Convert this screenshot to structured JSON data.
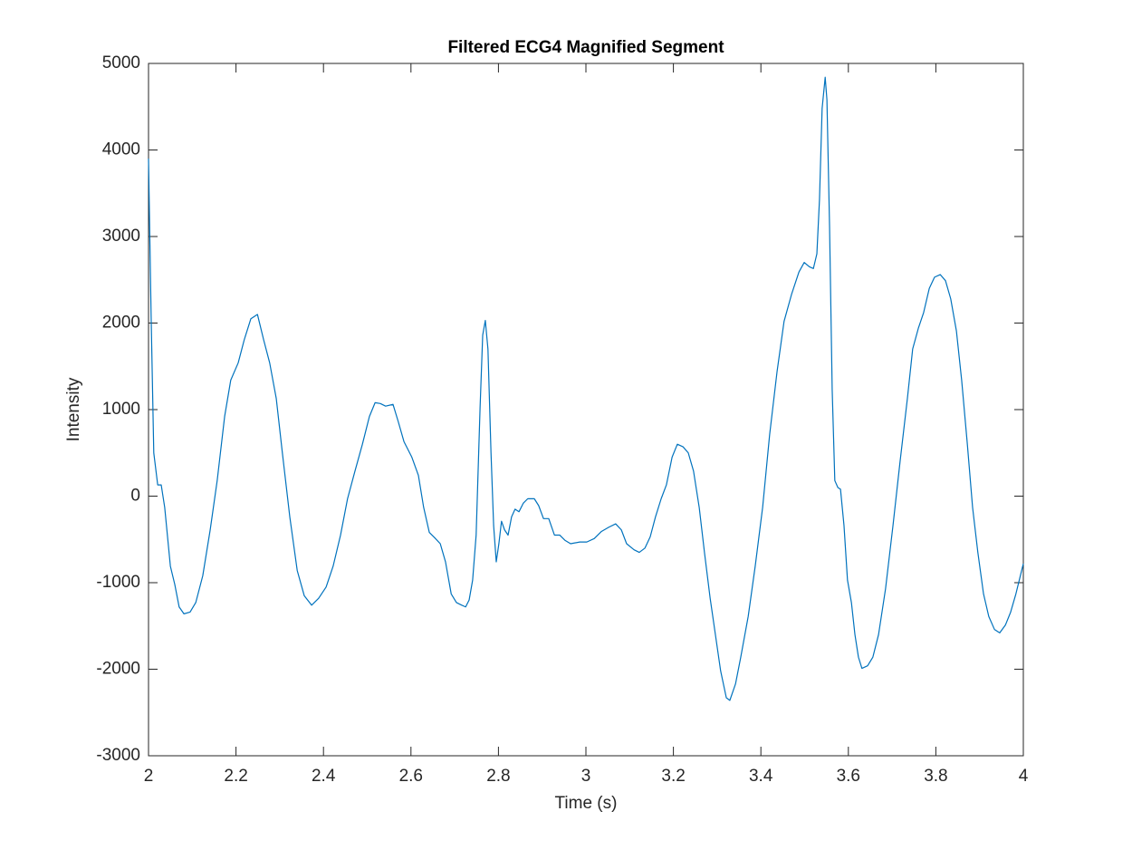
{
  "chart_data": {
    "type": "line",
    "title": "Filtered ECG4 Magnified Segment",
    "xlabel": "Time (s)",
    "ylabel": "Intensity",
    "color": "#0072bd",
    "xlim": [
      2,
      4
    ],
    "xticks": [
      2,
      2.2,
      2.4,
      2.6,
      2.8,
      3,
      3.2,
      3.4,
      3.6,
      3.8,
      4
    ],
    "ylim": [
      -3000,
      5000
    ],
    "yticks": [
      -3000,
      -2000,
      -1000,
      0,
      1000,
      2000,
      3000,
      4000,
      5000
    ],
    "grid": false,
    "x": [
      2.0,
      2.006,
      2.012,
      2.021,
      2.029,
      2.037,
      2.05,
      2.06,
      2.07,
      2.081,
      2.095,
      2.108,
      2.124,
      2.141,
      2.157,
      2.174,
      2.188,
      2.205,
      2.219,
      2.234,
      2.249,
      2.263,
      2.277,
      2.292,
      2.306,
      2.323,
      2.34,
      2.356,
      2.373,
      2.389,
      2.406,
      2.422,
      2.439,
      2.455,
      2.472,
      2.489,
      2.505,
      2.518,
      2.53,
      2.542,
      2.559,
      2.571,
      2.584,
      2.602,
      2.617,
      2.629,
      2.642,
      2.654,
      2.667,
      2.679,
      2.692,
      2.704,
      2.716,
      2.725,
      2.733,
      2.741,
      2.749,
      2.758,
      2.764,
      2.77,
      2.776,
      2.783,
      2.789,
      2.795,
      2.801,
      2.807,
      2.814,
      2.822,
      2.83,
      2.838,
      2.847,
      2.857,
      2.867,
      2.882,
      2.892,
      2.903,
      2.915,
      2.928,
      2.94,
      2.952,
      2.965,
      2.986,
      3.002,
      3.019,
      3.035,
      3.052,
      3.068,
      3.081,
      3.093,
      3.11,
      3.122,
      3.135,
      3.147,
      3.159,
      3.172,
      3.184,
      3.197,
      3.209,
      3.222,
      3.234,
      3.246,
      3.259,
      3.271,
      3.284,
      3.296,
      3.308,
      3.321,
      3.329,
      3.342,
      3.354,
      3.371,
      3.387,
      3.404,
      3.42,
      3.437,
      3.453,
      3.47,
      3.487,
      3.499,
      3.511,
      3.52,
      3.528,
      3.534,
      3.54,
      3.547,
      3.551,
      3.557,
      3.563,
      3.569,
      3.576,
      3.582,
      3.59,
      3.598,
      3.607,
      3.615,
      3.623,
      3.631,
      3.644,
      3.656,
      3.669,
      3.685,
      3.702,
      3.718,
      3.735,
      3.747,
      3.76,
      3.772,
      3.785,
      3.797,
      3.81,
      3.822,
      3.834,
      3.847,
      3.859,
      3.872,
      3.884,
      3.896,
      3.909,
      3.921,
      3.934,
      3.946,
      3.959,
      3.971,
      3.983,
      4.0
    ],
    "values": [
      3900,
      2070,
      500,
      130,
      130,
      -130,
      -810,
      -1020,
      -1280,
      -1360,
      -1340,
      -1230,
      -920,
      -390,
      180,
      920,
      1340,
      1540,
      1810,
      2050,
      2100,
      1810,
      1540,
      1130,
      500,
      -240,
      -860,
      -1150,
      -1260,
      -1180,
      -1050,
      -810,
      -450,
      -30,
      290,
      600,
      920,
      1080,
      1070,
      1040,
      1060,
      860,
      630,
      450,
      240,
      -130,
      -420,
      -480,
      -550,
      -760,
      -1130,
      -1230,
      -1260,
      -1280,
      -1200,
      -970,
      -450,
      1020,
      1860,
      2030,
      1700,
      500,
      -340,
      -760,
      -550,
      -290,
      -390,
      -450,
      -240,
      -150,
      -180,
      -80,
      -30,
      -30,
      -110,
      -260,
      -260,
      -450,
      -450,
      -510,
      -550,
      -530,
      -530,
      -490,
      -410,
      -360,
      -320,
      -390,
      -550,
      -620,
      -650,
      -600,
      -470,
      -240,
      -30,
      130,
      450,
      600,
      570,
      500,
      290,
      -130,
      -650,
      -1180,
      -1600,
      -2020,
      -2330,
      -2360,
      -2170,
      -1860,
      -1390,
      -810,
      -130,
      710,
      1440,
      2020,
      2330,
      2590,
      2700,
      2650,
      2630,
      2800,
      3430,
      4480,
      4840,
      4580,
      3120,
      1230,
      180,
      100,
      80,
      -340,
      -970,
      -1230,
      -1600,
      -1860,
      -1990,
      -1960,
      -1860,
      -1600,
      -1070,
      -340,
      390,
      1130,
      1700,
      1940,
      2120,
      2400,
      2530,
      2560,
      2490,
      2280,
      1910,
      1340,
      600,
      -130,
      -650,
      -1130,
      -1390,
      -1540,
      -1580,
      -1490,
      -1340,
      -1130,
      -780
    ]
  }
}
